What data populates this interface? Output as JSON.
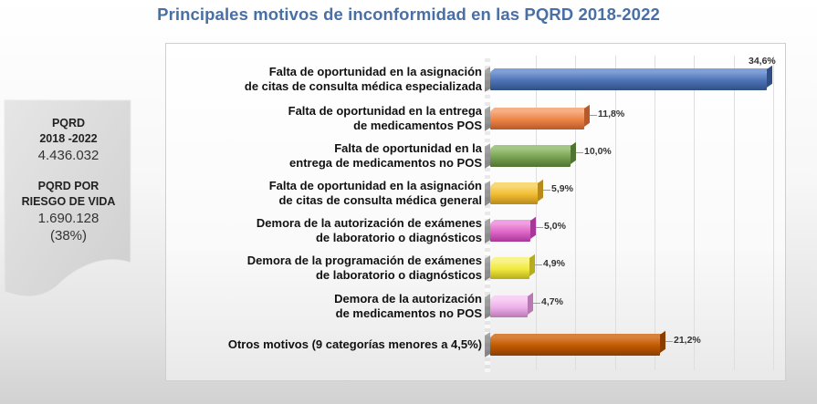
{
  "header": {
    "title": "Principales motivos de inconformidad en las PQRD 2018-2022"
  },
  "infobox": {
    "line1": "PQRD",
    "line2": "2018 -2022",
    "total": "4.436.032",
    "line3": "PQRD POR",
    "line4": "RIESGO DE VIDA",
    "risk_total": "1.690.128",
    "risk_pct": "(38%)"
  },
  "bars": [
    {
      "l1": "Falta de oportunidad en la asignación",
      "l2": "de citas de consulta médica especializada",
      "value": 34.6,
      "label": "34,6%",
      "color": "#4f74b8",
      "dark": "#2f4f86",
      "light": "#7fa0d6"
    },
    {
      "l1": "Falta de oportunidad en la entrega",
      "l2": "de medicamentos POS",
      "value": 11.8,
      "label": "11,8%",
      "color": "#ee8546",
      "dark": "#b8592a",
      "light": "#f7b085"
    },
    {
      "l1": "Falta de oportunidad en la",
      "l2": "entrega de medicamentos no POS",
      "value": 10.0,
      "label": "10,0%",
      "color": "#7aa353",
      "dark": "#4f7433",
      "light": "#a3c784"
    },
    {
      "l1": "Falta de oportunidad en la asignación",
      "l2": "de citas de consulta médica general",
      "value": 5.9,
      "label": "5,9%",
      "color": "#f2bd33",
      "dark": "#b88a1a",
      "light": "#f8d977"
    },
    {
      "l1": "Demora de la autorización de exámenes",
      "l2": "de laboratorio o diagnósticos",
      "value": 5.0,
      "label": "5,0%",
      "color": "#e068c8",
      "dark": "#a8379a",
      "light": "#f0a0e0"
    },
    {
      "l1": "Demora de la programación de exámenes",
      "l2": "de laboratorio o diagnósticos",
      "value": 4.9,
      "label": "4,9%",
      "color": "#f2ea3c",
      "dark": "#b5ad1c",
      "light": "#f8f38a"
    },
    {
      "l1": "Demora de la autorización",
      "l2": "de medicamentos no POS",
      "value": 4.7,
      "label": "4,7%",
      "color": "#eeb0ea",
      "dark": "#b878b4",
      "light": "#f6d2f3"
    },
    {
      "l1": "Otros motivos (9 categorías menores a 4,5%)",
      "l2": "",
      "value": 21.2,
      "label": "21,2%",
      "color": "#c05a00",
      "dark": "#8a3e00",
      "light": "#d8813a"
    }
  ],
  "chart_data": {
    "type": "bar",
    "orientation": "horizontal",
    "title": "Principales motivos de inconformidad en las PQRD 2018-2022",
    "xlabel": "",
    "ylabel": "",
    "categories": [
      "Falta de oportunidad en la asignación de citas de consulta médica especializada",
      "Falta de oportunidad en la entrega de medicamentos POS",
      "Falta de oportunidad en la entrega de medicamentos no POS",
      "Falta de oportunidad en la asignación de citas de consulta médica general",
      "Demora de la autorización de exámenes de laboratorio o diagnósticos",
      "Demora de la programación de exámenes de laboratorio o diagnósticos",
      "Demora de la autorización de medicamentos no POS",
      "Otros motivos (9 categorías menores a 4,5%)"
    ],
    "values": [
      34.6,
      11.8,
      10.0,
      5.9,
      5.0,
      4.9,
      4.7,
      21.2
    ],
    "data_labels": [
      "34,6%",
      "11,8%",
      "10,0%",
      "5,9%",
      "5,0%",
      "4,9%",
      "4,7%",
      "21,2%"
    ],
    "unit": "%",
    "xlim": [
      0,
      37
    ],
    "grid": true,
    "legend": "none",
    "style": "3D horizontal bars, one color per category",
    "annotations": {
      "PQRD 2018-2022": "4.436.032",
      "PQRD por riesgo de vida": "1.690.128 (38%)"
    }
  }
}
